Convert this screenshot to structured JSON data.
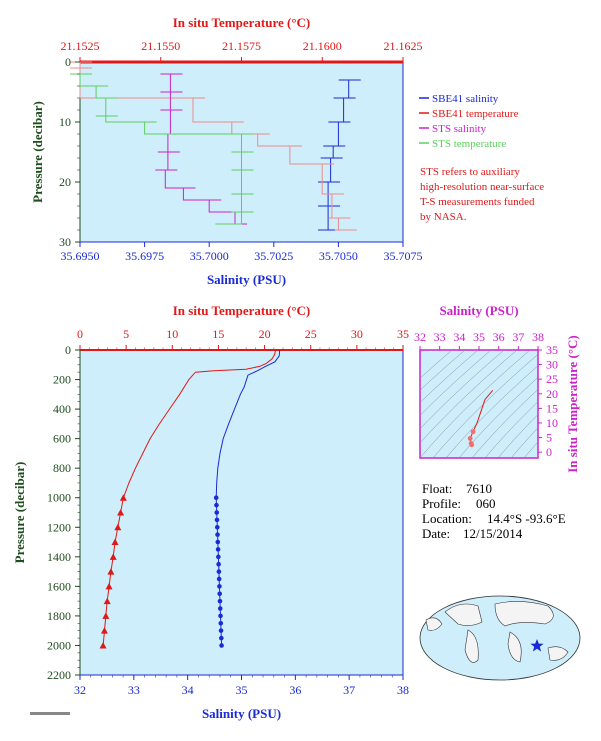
{
  "colors": {
    "salinity_blue": "#1a2bd6",
    "temperature_red": "#e01818",
    "sts_salinity": "#cc22cc",
    "sts_temperature": "#5fce5f",
    "sbe_temp_light": "#f08a8a",
    "plot_bg": "#cdeefa",
    "axis_dark_green": "#1f4d1f",
    "magenta_axis": "#cc22cc"
  },
  "top_panel": {
    "top_axis_label": "In situ Temperature (°C)",
    "bottom_axis_label": "Salinity (PSU)",
    "y_axis_label": "Pressure (decibar)",
    "top_ticks": [
      "21.1525",
      "21.1550",
      "21.1575",
      "21.1600",
      "21.1625"
    ],
    "bottom_ticks": [
      "35.6950",
      "35.6975",
      "35.7000",
      "35.7025",
      "35.7050",
      "35.7075"
    ],
    "y_ticks": [
      "0",
      "10",
      "20",
      "30"
    ],
    "legend": [
      {
        "label": "SBE41 salinity",
        "color": "#1a2bd6"
      },
      {
        "label": "SBE41 temperature",
        "color": "#e01818"
      },
      {
        "label": "STS salinity",
        "color": "#cc22cc"
      },
      {
        "label": "STS temperature",
        "color": "#5fce5f"
      }
    ],
    "note": [
      "STS refers to auxiliary",
      "high-resolution near-surface",
      "T-S measurements funded",
      "by NASA."
    ]
  },
  "main_panel": {
    "top_axis_label": "In situ Temperature (°C)",
    "bottom_axis_label": "Salinity (PSU)",
    "y_axis_label": "Pressure (decibar)",
    "top_ticks": [
      "0",
      "5",
      "10",
      "15",
      "20",
      "25",
      "30",
      "35"
    ],
    "bottom_ticks": [
      "32",
      "33",
      "34",
      "35",
      "36",
      "37",
      "38"
    ],
    "y_ticks": [
      "0",
      "200",
      "400",
      "600",
      "800",
      "1000",
      "1200",
      "1400",
      "1600",
      "1800",
      "2000",
      "2200"
    ]
  },
  "ts_panel": {
    "top_axis_label": "Salinity (PSU)",
    "right_axis_label": "In situ Temperature (°C)",
    "top_ticks": [
      "32",
      "33",
      "34",
      "35",
      "36",
      "37",
      "38"
    ],
    "right_ticks": [
      "0",
      "5",
      "10",
      "15",
      "20",
      "25",
      "30",
      "35"
    ]
  },
  "info": {
    "float_label": "Float:",
    "float_value": "7610",
    "profile_label": "Profile:",
    "profile_value": "060",
    "location_label": "Location:",
    "location_value": "14.4°S  -93.6°E",
    "date_label": "Date:",
    "date_value": "12/15/2014"
  },
  "chart_data": [
    {
      "type": "line",
      "title": "",
      "xlabel": "Salinity (PSU)",
      "x2label": "In situ Temperature (°C)",
      "ylabel": "Pressure (decibar)",
      "xlim": [
        35.695,
        35.7075
      ],
      "x2lim": [
        21.1525,
        21.1625
      ],
      "ylim": [
        30,
        0
      ],
      "series": [
        {
          "name": "SBE41 salinity",
          "axis": "x",
          "points": [
            [
              35.7054,
              3
            ],
            [
              35.7052,
              6
            ],
            [
              35.705,
              10
            ],
            [
              35.7048,
              14
            ],
            [
              35.7047,
              16
            ],
            [
              35.7046,
              20
            ],
            [
              35.7046,
              24
            ],
            [
              35.7046,
              28
            ]
          ]
        },
        {
          "name": "SBE41 temperature",
          "axis": "x2",
          "points": [
            [
              21.1525,
              0
            ],
            [
              21.1525,
              1
            ],
            [
              21.156,
              6
            ],
            [
              21.1572,
              10
            ],
            [
              21.158,
              12
            ],
            [
              21.159,
              14
            ],
            [
              21.16,
              17
            ],
            [
              21.1603,
              22
            ],
            [
              21.1605,
              26
            ],
            [
              21.1607,
              28
            ]
          ]
        },
        {
          "name": "STS salinity",
          "axis": "x",
          "points": [
            [
              35.6985,
              2
            ],
            [
              35.6985,
              5
            ],
            [
              35.6985,
              8
            ],
            [
              35.6984,
              12
            ],
            [
              35.6984,
              15
            ],
            [
              35.6983,
              18
            ],
            [
              35.699,
              21
            ],
            [
              35.7,
              23
            ],
            [
              35.701,
              25
            ],
            [
              35.701,
              27
            ]
          ]
        },
        {
          "name": "STS temperature",
          "axis": "x2",
          "points": [
            [
              21.1525,
              2
            ],
            [
              21.153,
              4
            ],
            [
              21.1533,
              6
            ],
            [
              21.1533,
              9
            ],
            [
              21.1545,
              10
            ],
            [
              21.1575,
              12
            ],
            [
              21.1575,
              15
            ],
            [
              21.1575,
              18
            ],
            [
              21.1575,
              22
            ],
            [
              21.1575,
              25
            ],
            [
              21.157,
              27
            ]
          ]
        }
      ]
    },
    {
      "type": "line",
      "title": "",
      "xlabel": "Salinity (PSU)",
      "x2label": "In situ Temperature (°C)",
      "ylabel": "Pressure (decibar)",
      "xlim": [
        32,
        38
      ],
      "x2lim": [
        0,
        35
      ],
      "ylim": [
        2200,
        0
      ],
      "series": [
        {
          "axis": "x2",
          "points": [
            [
              21.2,
              0
            ],
            [
              21.1,
              30
            ],
            [
              20.8,
              60
            ],
            [
              20.2,
              90
            ],
            [
              19.5,
              110
            ],
            [
              18.0,
              130
            ],
            [
              14.5,
              140
            ],
            [
              12.5,
              150
            ],
            [
              11.8,
              200
            ],
            [
              10.8,
              300
            ],
            [
              9.7,
              400
            ],
            [
              8.6,
              500
            ],
            [
              7.6,
              600
            ],
            [
              6.8,
              700
            ],
            [
              6.0,
              800
            ],
            [
              5.3,
              900
            ],
            [
              4.7,
              1000
            ],
            [
              4.4,
              1100
            ],
            [
              4.1,
              1200
            ],
            [
              3.8,
              1300
            ],
            [
              3.6,
              1400
            ],
            [
              3.35,
              1500
            ],
            [
              3.15,
              1600
            ],
            [
              2.95,
              1700
            ],
            [
              2.8,
              1800
            ],
            [
              2.65,
              1900
            ],
            [
              2.5,
              2000
            ]
          ]
        },
        {
          "axis": "x",
          "points": [
            [
              35.71,
              0
            ],
            [
              35.7,
              40
            ],
            [
              35.62,
              80
            ],
            [
              35.45,
              110
            ],
            [
              35.3,
              140
            ],
            [
              35.12,
              170
            ],
            [
              35.05,
              250
            ],
            [
              34.98,
              300
            ],
            [
              34.87,
              400
            ],
            [
              34.76,
              500
            ],
            [
              34.66,
              600
            ],
            [
              34.6,
              700
            ],
            [
              34.56,
              800
            ],
            [
              34.54,
              900
            ],
            [
              34.53,
              1000
            ],
            [
              34.55,
              1200
            ],
            [
              34.57,
              1400
            ],
            [
              34.59,
              1600
            ],
            [
              34.61,
              1800
            ],
            [
              34.63,
              2000
            ]
          ]
        }
      ]
    },
    {
      "type": "scatter",
      "title": "",
      "xlabel": "Salinity (PSU)",
      "ylabel": "In situ Temperature (°C)",
      "xlim": [
        32,
        38
      ],
      "ylim": [
        -2,
        35
      ],
      "series": [
        {
          "points": [
            [
              35.7,
              21.2
            ],
            [
              35.3,
              18
            ],
            [
              35.1,
              14
            ],
            [
              34.9,
              10
            ],
            [
              34.7,
              7
            ],
            [
              34.55,
              4.7
            ],
            [
              34.6,
              3
            ],
            [
              34.63,
              2.5
            ]
          ]
        }
      ]
    }
  ]
}
